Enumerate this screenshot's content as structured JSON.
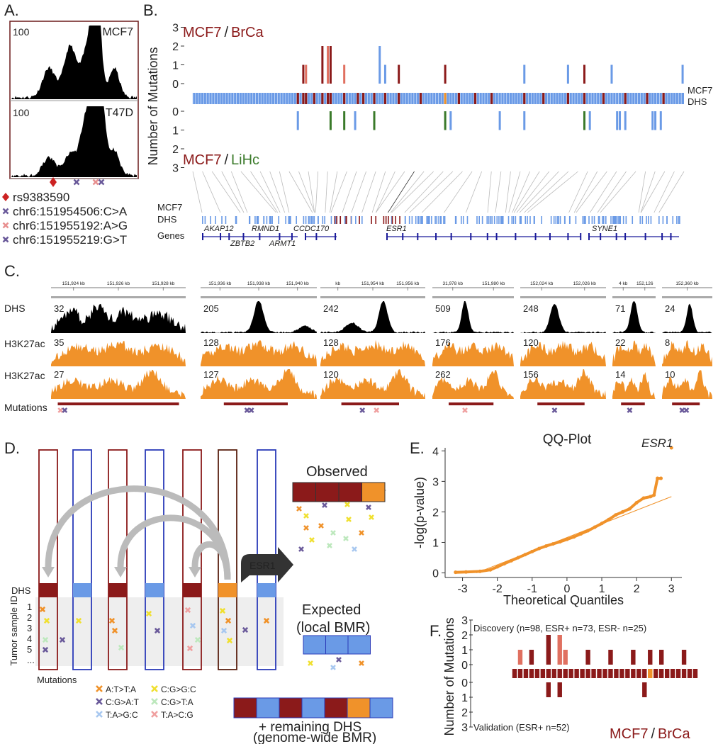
{
  "panel_a": {
    "label": "A.",
    "tracks": [
      {
        "name": "MCF7",
        "max": 100
      },
      {
        "name": "T47D",
        "max": 100
      }
    ],
    "legend": [
      {
        "text": "rs9383590",
        "color": "#cc2222",
        "marker": "diamond"
      },
      {
        "text": "chr6:151954506:C>A",
        "color": "#6a5a9a",
        "marker": "cross"
      },
      {
        "text": "chr6:151955192:A>G",
        "color": "#e89090",
        "marker": "cross"
      },
      {
        "text": "chr6:151955219:G>T",
        "color": "#6a5a9a",
        "marker": "cross"
      }
    ]
  },
  "panel_b": {
    "label": "B.",
    "y_label": "Number of Mutations",
    "upper_title": {
      "cell": "MCF7",
      "sep": "/",
      "cancer": "BrCa"
    },
    "lower_title": {
      "cell": "MCF7",
      "sep": "/",
      "cancer": "LiHc"
    },
    "upper_yticks": [
      3,
      2,
      1,
      0
    ],
    "lower_yticks": [
      0,
      1,
      2,
      3
    ],
    "xlim": [
      0,
      180
    ],
    "dhs_label": [
      "MCF7",
      "DHS"
    ],
    "track_labels": [
      "MCF7",
      "DHS",
      "Genes"
    ],
    "upper_bars": {
      "x": [
        40,
        41,
        47,
        49,
        50,
        55,
        68,
        70,
        75,
        92,
        121,
        137,
        143,
        153,
        179
      ],
      "values": [
        1,
        1,
        2,
        2,
        2,
        1,
        2,
        1,
        1,
        1,
        1,
        1,
        1,
        1,
        1
      ],
      "colors": [
        "#8b1a1a",
        "#e07060",
        "#8b1a1a",
        "#e07060",
        "#8b1a1a",
        "#e07060",
        "#6a9ae6",
        "#6a9ae6",
        "#8b1a1a",
        "#8b1a1a",
        "#6a9ae6",
        "#6a9ae6",
        "#8b1a1a",
        "#6a9ae6",
        "#6a9ae6"
      ]
    },
    "lower_bars": {
      "x": [
        38,
        50,
        55,
        59,
        66,
        92,
        94,
        112,
        121,
        143,
        145,
        155,
        156,
        158,
        168,
        169,
        171
      ],
      "values": [
        1,
        1,
        1,
        1,
        1,
        1,
        1,
        1,
        1,
        1,
        1,
        1,
        1,
        1,
        1,
        1,
        1
      ],
      "colors": [
        "#6a9ae6",
        "#3a7a2a",
        "#3a7a2a",
        "#6a9ae6",
        "#3a7a2a",
        "#3a7a2a",
        "#6a9ae6",
        "#6a9ae6",
        "#6a9ae6",
        "#3a7a2a",
        "#6a9ae6",
        "#6a9ae6",
        "#6a9ae6",
        "#6a9ae6",
        "#6a9ae6",
        "#6a9ae6",
        "#6a9ae6"
      ]
    },
    "mutated_dhs": [
      38,
      40,
      41,
      44,
      47,
      49,
      50,
      55,
      60,
      62,
      66,
      70,
      75,
      83,
      97,
      103,
      109,
      121,
      128,
      137,
      143,
      150,
      158,
      166,
      172
    ],
    "esr1_dhs": 92,
    "genes": [
      "AKAP12",
      "ZBTB2",
      "RMND1",
      "ARMT1",
      "CCDC170",
      "ESR1",
      "SYNE1"
    ]
  },
  "panel_c": {
    "label": "C.",
    "row_labels": [
      "DHS",
      "H3K27ac",
      "H3K27ac",
      "Mutations"
    ],
    "columns": [
      {
        "ticks": [
          "151,924 kb",
          "151,926 kb",
          "151,928 kb"
        ],
        "scales": [
          32,
          35,
          27
        ]
      },
      {
        "ticks": [
          "151,936 kb",
          "151,938 kb",
          "151,940 kb"
        ],
        "scales": [
          205,
          128,
          127
        ]
      },
      {
        "ticks": [
          "kb",
          "151,954 kb",
          "151,956 kb"
        ],
        "scales": [
          242,
          128,
          120
        ]
      },
      {
        "ticks": [
          "31,978 kb",
          "151,980 kb"
        ],
        "scales": [
          509,
          176,
          262
        ]
      },
      {
        "ticks": [
          "152,024 kb",
          "152,026 kb"
        ],
        "scales": [
          248,
          120,
          156
        ]
      },
      {
        "ticks": [
          "4 kb",
          "152,126"
        ],
        "scales": [
          71,
          22,
          14
        ]
      },
      {
        "ticks": [
          "152,360 kb"
        ],
        "scales": [
          24,
          8,
          10
        ]
      }
    ]
  },
  "panel_d": {
    "label": "D.",
    "observed": "Observed",
    "expected": [
      "Expected",
      "(local BMR)"
    ],
    "remaining": [
      "+ remaining DHS",
      "(genome-wide BMR)"
    ],
    "gene": "ESR1",
    "dhs": "DHS",
    "sample_axis": "Tumor sample ID",
    "sample_ids": [
      "1",
      "2",
      "3",
      "4",
      "5",
      "..."
    ],
    "mutations": "Mutations",
    "legend": [
      {
        "text": "A:T>T:A",
        "color": "#f0922a"
      },
      {
        "text": "C:G>G:C",
        "color": "#f0e030"
      },
      {
        "text": "C:G>A:T",
        "color": "#6a5a9a"
      },
      {
        "text": "C:G>T:A",
        "color": "#bde8bd"
      },
      {
        "text": "T:A>G:C",
        "color": "#a8c8f0"
      },
      {
        "text": "T:A>C:G",
        "color": "#f0a0a0"
      }
    ]
  },
  "panel_e": {
    "type": "scatter",
    "label": "E.",
    "title": "QQ-Plot",
    "x_label": "Theoretical Quantiles",
    "y_label": "-log(p-value)",
    "annotation": "ESR1",
    "color": "#f0922a",
    "x": [
      -3.2,
      -2.9,
      -2.5,
      -2.2,
      -2.0,
      -1.8,
      -1.6,
      -1.4,
      -1.2,
      -1.0,
      -0.8,
      -0.6,
      -0.4,
      -0.2,
      0,
      0.2,
      0.4,
      0.6,
      0.8,
      1.0,
      1.2,
      1.4,
      1.6,
      1.8,
      2.0,
      2.2,
      2.4,
      2.5,
      2.6,
      2.7,
      3.0
    ],
    "y": [
      0.02,
      0.03,
      0.05,
      0.1,
      0.2,
      0.3,
      0.4,
      0.5,
      0.6,
      0.7,
      0.8,
      0.88,
      0.95,
      1.02,
      1.1,
      1.18,
      1.28,
      1.38,
      1.5,
      1.62,
      1.75,
      1.9,
      2.0,
      2.1,
      2.3,
      2.45,
      2.5,
      2.55,
      3.1,
      3.1,
      4.1
    ],
    "ref_line": {
      "x": [
        -2.6,
        3.0
      ],
      "y": [
        0,
        2.5
      ]
    },
    "xlim": [
      -3.5,
      3.3
    ],
    "ylim": [
      -0.15,
      4.1
    ],
    "xticks": [
      -3,
      -2,
      -1,
      0,
      1,
      2,
      3
    ],
    "yticks": [
      0,
      1,
      2,
      3,
      4
    ]
  },
  "panel_f": {
    "label": "F.",
    "y_label": "Number of Mutations",
    "upper_yticks": [
      3,
      2,
      1,
      0
    ],
    "lower_yticks": [
      0,
      1,
      2,
      3
    ],
    "xlim": [
      0,
      33
    ],
    "discovery_label": "Discovery (n=98, ESR+ n=73, ESR- n=25)",
    "validation_label": "Validation (ESR+ n=52)",
    "title": {
      "cell": "MCF7",
      "sep": "/",
      "cancer": "BrCa"
    },
    "discovery": {
      "x": [
        1,
        3,
        6,
        8,
        9,
        13,
        17,
        21,
        24,
        26,
        30
      ],
      "values": [
        1,
        1,
        2,
        2,
        1,
        1,
        1,
        1,
        1,
        1,
        1
      ],
      "colors": [
        "#e07060",
        "#8b1a1a",
        "#8b1a1a",
        "#e07060",
        "#e07060",
        "#8b1a1a",
        "#8b1a1a",
        "#8b1a1a",
        "#8b1a1a",
        "#8b1a1a",
        "#8b1a1a"
      ]
    },
    "validation": {
      "x": [
        6,
        8,
        23
      ],
      "values": [
        1,
        1,
        1
      ]
    },
    "esr1_dhs": 24
  }
}
